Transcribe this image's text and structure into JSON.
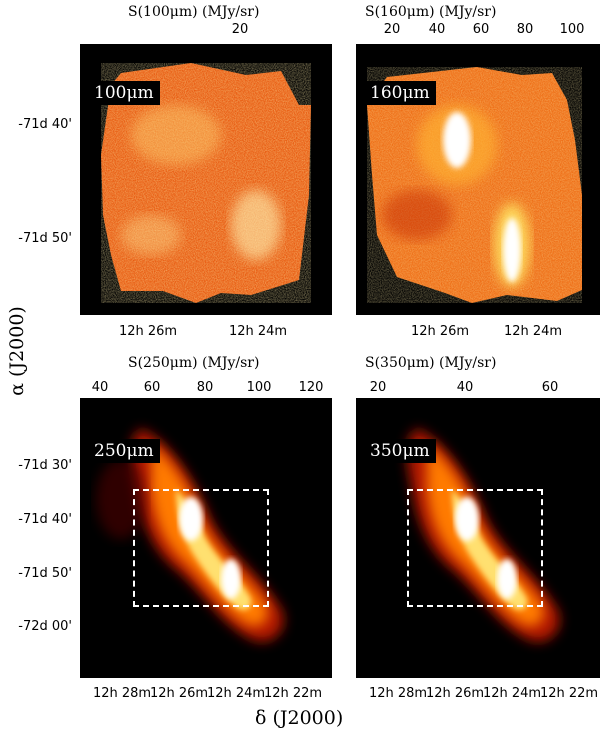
{
  "panels": {
    "p100": {
      "colorbar_title": "S(100μm)  (MJy/sr)",
      "colorbar_ticks": [
        "20"
      ],
      "band_label": "100μm",
      "y_ticks": [
        "-71d 40'",
        "-71d 50'"
      ],
      "x_ticks": [
        "12h 26m",
        "12h 24m"
      ]
    },
    "p160": {
      "colorbar_title": "S(160μm)  (MJy/sr)",
      "colorbar_ticks": [
        "20",
        "40",
        "60",
        "80",
        "100"
      ],
      "band_label": "160μm",
      "x_ticks": [
        "12h 26m",
        "12h 24m"
      ]
    },
    "p250": {
      "colorbar_title": "S(250μm)  (MJy/sr)",
      "colorbar_ticks": [
        "40",
        "60",
        "80",
        "100",
        "120"
      ],
      "band_label": "250μm",
      "y_ticks": [
        "-71d 30'",
        "-71d 40'",
        "-71d 50'",
        "-72d 00'"
      ],
      "x_ticks": [
        "12h 28m",
        "12h 26m",
        "12h 24m",
        "12h 22m"
      ]
    },
    "p350": {
      "colorbar_title": "S(350μm)  (MJy/sr)",
      "colorbar_ticks": [
        "20",
        "40",
        "60"
      ],
      "band_label": "350μm",
      "x_ticks": [
        "12h 28m",
        "12h 26m",
        "12h 24m",
        "12h 22m"
      ]
    }
  },
  "axes": {
    "y_title": "α (J2000)",
    "x_title": "δ (J2000)"
  }
}
